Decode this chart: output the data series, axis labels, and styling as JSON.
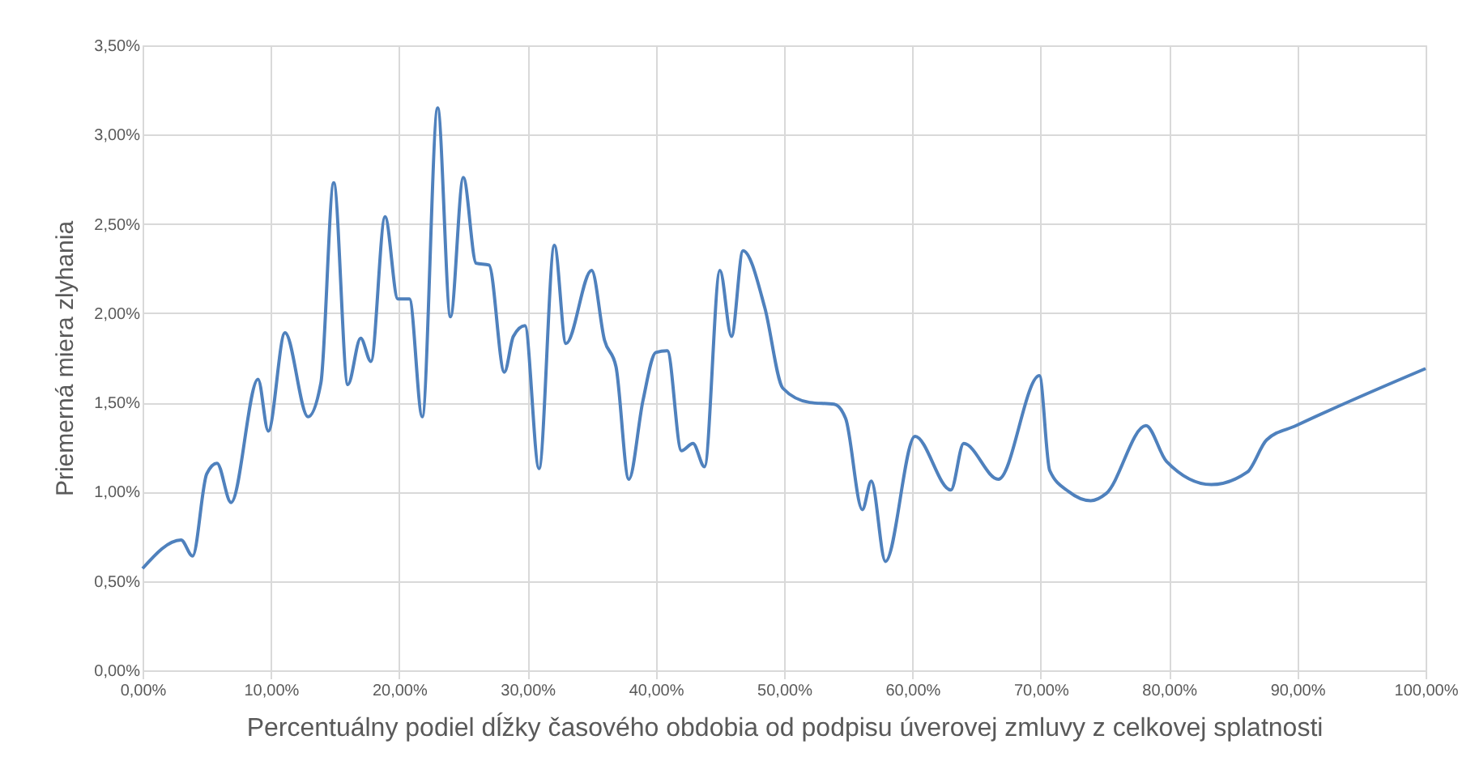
{
  "chart_data": {
    "type": "line",
    "xlabel": "Percentuálny podiel dĺžky časového obdobia od podpisu úverovej zmluvy z celkovej splatnosti",
    "ylabel": "Priemerná miera zlyhania",
    "x": [
      0,
      3.0,
      3.9,
      5.0,
      5.8,
      6.9,
      9.0,
      9.8,
      11.1,
      12.9,
      13.9,
      14.9,
      16.0,
      17.0,
      17.8,
      18.9,
      19.9,
      20.8,
      21.8,
      23.0,
      24.0,
      25.0,
      26.0,
      27.0,
      28.2,
      28.9,
      29.8,
      30.9,
      32.1,
      33.0,
      35.0,
      36.0,
      36.9,
      37.9,
      39.0,
      40.0,
      40.9,
      42.0,
      42.9,
      43.8,
      45.0,
      45.9,
      46.8,
      48.5,
      49.9,
      52.0,
      53.9,
      54.8,
      56.1,
      56.8,
      57.9,
      60.2,
      63.0,
      64.0,
      66.7,
      69.9,
      70.7,
      72.2,
      73.9,
      75.1,
      78.2,
      79.8,
      83.3,
      86.1,
      87.6,
      89.9,
      100
    ],
    "series": [
      {
        "color": "#4f81bd",
        "values": [
          0.57,
          0.73,
          0.64,
          1.1,
          1.16,
          0.94,
          1.63,
          1.34,
          1.89,
          1.42,
          1.61,
          2.73,
          1.6,
          1.86,
          1.73,
          2.54,
          2.08,
          2.08,
          1.42,
          3.15,
          1.98,
          2.76,
          2.28,
          2.27,
          1.67,
          1.87,
          1.93,
          1.13,
          2.38,
          1.83,
          2.24,
          1.85,
          1.7,
          1.07,
          1.51,
          1.78,
          1.79,
          1.23,
          1.27,
          1.14,
          2.24,
          1.87,
          2.35,
          2.03,
          1.58,
          1.5,
          1.49,
          1.41,
          0.9,
          1.06,
          0.61,
          1.31,
          1.01,
          1.27,
          1.07,
          1.65,
          1.12,
          1.0,
          0.95,
          0.99,
          1.37,
          1.17,
          1.04,
          1.11,
          1.29,
          1.37,
          1.69
        ]
      }
    ],
    "xlim": [
      0,
      100
    ],
    "xticks": [
      {
        "value": 0,
        "label": "0,00%"
      },
      {
        "value": 10,
        "label": "10,00%"
      },
      {
        "value": 20,
        "label": "20,00%"
      },
      {
        "value": 30,
        "label": "30,00%"
      },
      {
        "value": 40,
        "label": "40,00%"
      },
      {
        "value": 50,
        "label": "50,00%"
      },
      {
        "value": 60,
        "label": "60,00%"
      },
      {
        "value": 70,
        "label": "70,00%"
      },
      {
        "value": 80,
        "label": "80,00%"
      },
      {
        "value": 90,
        "label": "90,00%"
      },
      {
        "value": 100,
        "label": "100,00%"
      }
    ],
    "ylim": [
      0,
      3.5
    ],
    "yticks": [
      {
        "value": 0,
        "label": "0,00%"
      },
      {
        "value": 0.5,
        "label": "0,50%"
      },
      {
        "value": 1.0,
        "label": "1,00%"
      },
      {
        "value": 1.5,
        "label": "1,50%"
      },
      {
        "value": 2.0,
        "label": "2,00%"
      },
      {
        "value": 2.5,
        "label": "2,50%"
      },
      {
        "value": 3.0,
        "label": "3,00%"
      },
      {
        "value": 3.5,
        "label": "3,50%"
      }
    ],
    "grid": true,
    "marker": "none",
    "line_style": "solid"
  }
}
